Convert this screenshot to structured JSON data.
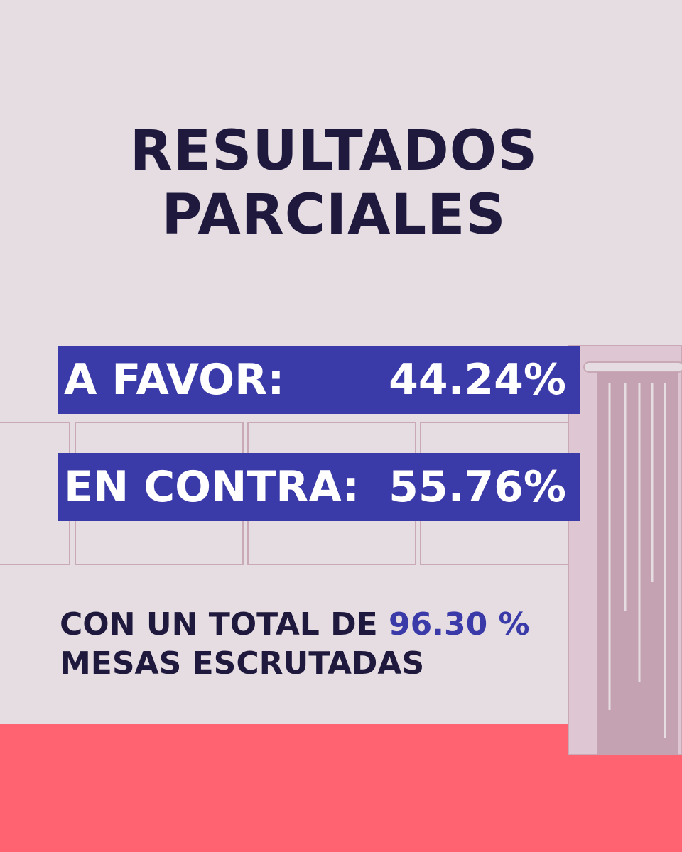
{
  "header": {
    "title_lines": [
      "RESULTADOS",
      "PARCIALES"
    ]
  },
  "results": [
    {
      "label": "A FAVOR:",
      "value": "44.24%"
    },
    {
      "label": "EN CONTRA:",
      "value": "55.76%"
    }
  ],
  "footer": {
    "prefix": "CON UN TOTAL DE",
    "highlight": "96.30 %",
    "suffix": "MESAS ESCRUTADAS"
  }
}
